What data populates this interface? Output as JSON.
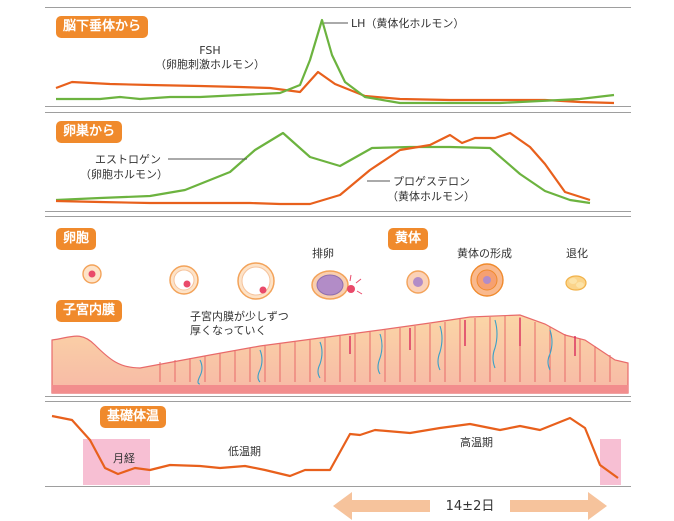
{
  "sections": {
    "pituitary": {
      "badge": "脳下垂体から",
      "fsh_label": "FSH",
      "fsh_desc": "（卵胞刺激ホルモン）",
      "lh_label": "LH（黄体化ホルモン）"
    },
    "ovary": {
      "badge": "卵巣から",
      "estrogen_label": "エストロゲン",
      "estrogen_desc": "（卵胞ホルモン）",
      "progesterone_label": "プロゲステロン",
      "progesterone_desc": "（黄体ホルモン）"
    },
    "follicle": {
      "badge": "卵胞",
      "ovulation_label": "排卵"
    },
    "corpus_luteum": {
      "badge": "黄体",
      "formation_label": "黄体の形成",
      "regression_label": "退化"
    },
    "endometrium": {
      "badge": "子宮内膜",
      "note_line1": "子宮内膜が少しずつ",
      "note_line2": "厚くなっていく"
    },
    "temperature": {
      "badge": "基礎体温",
      "menses_label": "月経",
      "low_phase_label": "低温期",
      "high_phase_label": "高温期"
    }
  },
  "duration_label": "14±2日",
  "colors": {
    "orange_line": "#e8601c",
    "green_line": "#6cb33f",
    "badge": "#f08a2c",
    "menses_band": "#f7bfd3",
    "arrow": "#f6c39c",
    "endometrium": "#f7b9a6"
  }
}
